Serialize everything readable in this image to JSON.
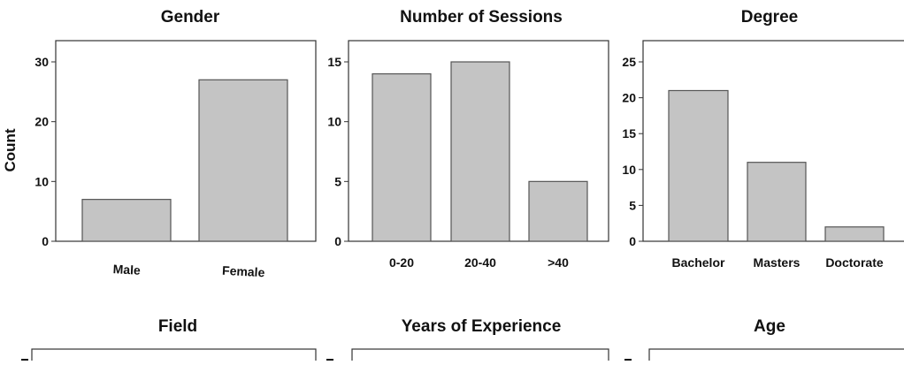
{
  "figure": {
    "ylabel": "Count",
    "bar_fill": "#c4c4c4",
    "bar_stroke": "#555555",
    "frame_stroke": "#333333"
  },
  "chart_data": [
    {
      "type": "bar",
      "title": "Gender",
      "categories": [
        "Male",
        "Female"
      ],
      "values": [
        7,
        27
      ],
      "ylim": [
        0,
        30
      ],
      "yticks": [
        "0",
        "10",
        "20",
        "30"
      ],
      "ylabel": "Count",
      "grid": false
    },
    {
      "type": "bar",
      "title": "Number of Sessions",
      "categories": [
        "0-20",
        "20-40",
        ">40"
      ],
      "values": [
        14,
        15,
        5
      ],
      "ylim": [
        0,
        15
      ],
      "yticks": [
        "0",
        "5",
        "10",
        "15"
      ],
      "grid": false
    },
    {
      "type": "bar",
      "title": "Degree",
      "categories": [
        "Bachelor",
        "Masters",
        "Doctorate"
      ],
      "values": [
        21,
        11,
        2
      ],
      "ylim": [
        0,
        25
      ],
      "yticks": [
        "0",
        "5",
        "10",
        "15",
        "20",
        "25"
      ],
      "grid": false
    },
    {
      "type": "bar",
      "title": "Field",
      "categories": [],
      "values": [],
      "grid": false
    },
    {
      "type": "bar",
      "title": "Years of Experience",
      "categories": [],
      "values": [],
      "grid": false
    },
    {
      "type": "bar",
      "title": "Age",
      "categories": [],
      "values": [],
      "grid": false
    }
  ]
}
